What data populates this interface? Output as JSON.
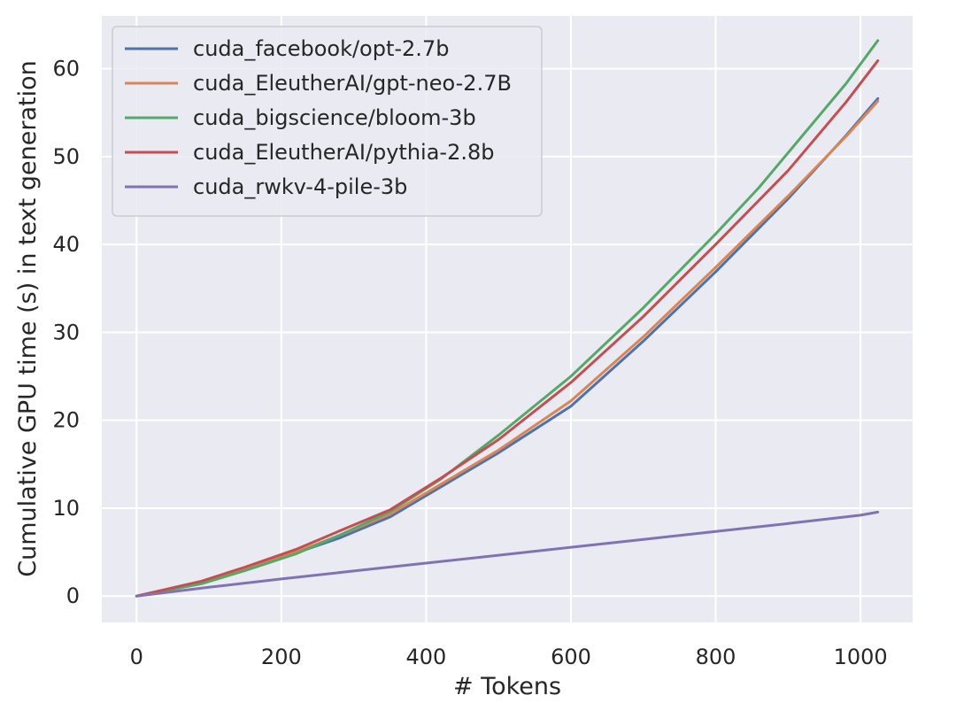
{
  "chart_data": {
    "type": "line",
    "title": "",
    "xlabel": "# Tokens",
    "ylabel": "Cumulative GPU time (s) in text generation",
    "xlim": [
      -48,
      1072
    ],
    "ylim": [
      -3,
      66
    ],
    "xticks": [
      0,
      200,
      400,
      600,
      800,
      1000
    ],
    "yticks": [
      0,
      10,
      20,
      30,
      40,
      50,
      60
    ],
    "grid": true,
    "legend_position": "upper-left",
    "series": [
      {
        "name": "cuda_facebook/opt-2.7b",
        "color": "#4c72b0",
        "x": [
          0,
          90,
          150,
          220,
          280,
          350,
          420,
          500,
          600,
          700,
          800,
          900,
          980,
          1024
        ],
        "y": [
          0,
          1.5,
          3.0,
          4.9,
          6.6,
          9.0,
          12.4,
          16.3,
          21.6,
          29.0,
          36.9,
          45.2,
          52.4,
          56.6
        ]
      },
      {
        "name": "cuda_EleutherAI/gpt-neo-2.7B",
        "color": "#dd8452",
        "x": [
          0,
          90,
          150,
          220,
          280,
          350,
          420,
          500,
          600,
          700,
          800,
          900,
          980,
          1024
        ],
        "y": [
          0,
          1.55,
          3.1,
          5.0,
          6.9,
          9.3,
          12.7,
          16.6,
          22.2,
          29.5,
          37.4,
          45.5,
          52.3,
          56.3
        ]
      },
      {
        "name": "cuda_bigscience/bloom-3b",
        "color": "#55a868",
        "x": [
          0,
          90,
          150,
          220,
          280,
          350,
          420,
          500,
          600,
          700,
          800,
          860,
          980,
          1024
        ],
        "y": [
          0,
          1.4,
          2.9,
          4.8,
          6.9,
          9.6,
          13.3,
          18.3,
          25.0,
          32.8,
          41.2,
          46.5,
          58.3,
          63.2
        ]
      },
      {
        "name": "cuda_EleutherAI/pythia-2.8b",
        "color": "#c44e52",
        "x": [
          0,
          90,
          150,
          220,
          280,
          350,
          420,
          500,
          600,
          700,
          800,
          900,
          980,
          1024
        ],
        "y": [
          0,
          1.7,
          3.3,
          5.3,
          7.4,
          9.8,
          13.4,
          17.8,
          24.3,
          31.8,
          40.0,
          48.4,
          56.2,
          60.9
        ]
      },
      {
        "name": "cuda_rwkv-4-pile-3b",
        "color": "#8172b3",
        "x": [
          0,
          100,
          200,
          300,
          400,
          500,
          600,
          700,
          800,
          900,
          1000,
          1024
        ],
        "y": [
          0,
          1.0,
          1.95,
          2.85,
          3.75,
          4.65,
          5.55,
          6.45,
          7.35,
          8.25,
          9.2,
          9.55
        ]
      }
    ]
  }
}
